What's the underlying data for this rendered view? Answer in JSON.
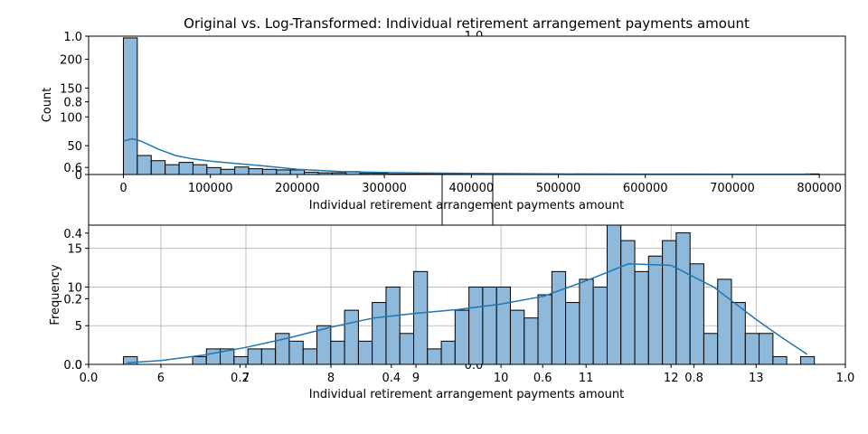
{
  "title": "Original vs. Log-Transformed: Individual retirement arrangement payments amount",
  "chart_data": [
    {
      "type": "bar",
      "subtype": "histogram with kde",
      "xlabel": "Individual retirement arrangement payments amount",
      "ylabel": "Count",
      "xlim": [
        -40000,
        830000
      ],
      "ylim": [
        0,
        240
      ],
      "xticks": [
        "0",
        "100000",
        "200000",
        "300000",
        "400000",
        "500000",
        "600000",
        "700000",
        "800000"
      ],
      "yticks": [
        "0",
        "50",
        "100",
        "150",
        "200"
      ],
      "grid": false,
      "bar_color": "#8fb9da",
      "line_color": "#1f77b4",
      "bin_edges": [
        0,
        16000,
        32000,
        48000,
        64000,
        80000,
        96000,
        112000,
        128000,
        144000,
        160000,
        176000,
        192000,
        208000,
        224000,
        240000,
        256000,
        272000,
        288000,
        304000,
        320000,
        336000,
        352000,
        368000,
        384000,
        400000,
        416000,
        432000,
        448000,
        464000,
        480000,
        496000,
        512000,
        528000,
        544000,
        560000,
        576000,
        592000,
        608000,
        624000,
        640000,
        656000,
        672000,
        688000,
        704000,
        720000,
        736000,
        752000,
        768000,
        784000,
        800000
      ],
      "counts": [
        237,
        33,
        24,
        17,
        21,
        17,
        12,
        9,
        13,
        10,
        9,
        8,
        8,
        4,
        3,
        3,
        5,
        2,
        2,
        1,
        1,
        1,
        1,
        1,
        1,
        0,
        1,
        0,
        1,
        0,
        1,
        0,
        0,
        0,
        0,
        0,
        0,
        0,
        0,
        0,
        0,
        0,
        0,
        0,
        0,
        0,
        0,
        0,
        0,
        1
      ],
      "kde": {
        "x": [
          0,
          10000,
          20000,
          40000,
          60000,
          80000,
          100000,
          130000,
          160000,
          200000,
          250000,
          300000,
          350000,
          400000,
          450000,
          500000,
          600000,
          700000,
          790000
        ],
        "y": [
          58,
          62,
          58,
          44,
          33,
          27,
          23,
          19,
          15,
          9,
          5,
          3.5,
          2.5,
          2,
          1.5,
          1,
          0.6,
          0.4,
          0.3
        ]
      }
    },
    {
      "type": "bar",
      "subtype": "histogram with kde",
      "xlabel": "Individual retirement arrangement payments amount",
      "ylabel": "Frequency",
      "xlim": [
        5.15,
        14.05
      ],
      "ylim": [
        0,
        18
      ],
      "xticks": [
        "6",
        "7",
        "8",
        "9",
        "10",
        "11",
        "12",
        "13"
      ],
      "yticks": [
        "0",
        "5",
        "10",
        "15"
      ],
      "grid": true,
      "bar_color": "#8fb9da",
      "line_color": "#1f77b4",
      "bin_edges": [
        5.56,
        5.723,
        5.885,
        6.048,
        6.21,
        6.373,
        6.535,
        6.698,
        6.86,
        7.023,
        7.185,
        7.348,
        7.51,
        7.673,
        7.835,
        7.998,
        8.16,
        8.323,
        8.485,
        8.648,
        8.81,
        8.973,
        9.135,
        9.298,
        9.46,
        9.623,
        9.785,
        9.948,
        10.11,
        10.273,
        10.435,
        10.598,
        10.76,
        10.923,
        11.085,
        11.248,
        11.41,
        11.573,
        11.735,
        11.898,
        12.06,
        12.223,
        12.385,
        12.548,
        12.71,
        12.873,
        13.035,
        13.198,
        13.36,
        13.523,
        13.685
      ],
      "counts": [
        1,
        0,
        0,
        0,
        0,
        1,
        2,
        2,
        1,
        2,
        2,
        4,
        3,
        2,
        5,
        3,
        7,
        3,
        8,
        10,
        4,
        12,
        2,
        3,
        7,
        10,
        10,
        10,
        7,
        6,
        9,
        12,
        8,
        11,
        10,
        18,
        16,
        12,
        14,
        16,
        17,
        13,
        4,
        11,
        8,
        4,
        4,
        1,
        0,
        1
      ],
      "kde": {
        "x": [
          5.6,
          6.0,
          6.5,
          7.0,
          7.5,
          8.0,
          8.5,
          9.0,
          9.5,
          10.0,
          10.5,
          11.0,
          11.5,
          12.0,
          12.5,
          13.0,
          13.3,
          13.6
        ],
        "y": [
          0.2,
          0.5,
          1.2,
          2.2,
          3.4,
          4.8,
          6.0,
          6.6,
          7.1,
          7.8,
          8.8,
          10.8,
          13.0,
          12.8,
          10.0,
          5.8,
          3.5,
          1.3
        ]
      }
    },
    {
      "type": "axes-overlay",
      "xticks": [
        "0.0",
        "0.2",
        "0.4",
        "0.6",
        "0.8",
        "1.0"
      ],
      "yticks": [
        "0.0",
        "0.2",
        "0.4",
        "0.6",
        "0.8",
        "1.0"
      ],
      "xlim": [
        0,
        1
      ],
      "ylim": [
        0,
        1
      ]
    },
    {
      "type": "axes-overlay",
      "xticks": [
        "0.0"
      ],
      "yticks": [
        "0.0",
        "1.0"
      ],
      "xlim": [
        0,
        1
      ],
      "ylim": [
        0,
        1
      ]
    }
  ]
}
